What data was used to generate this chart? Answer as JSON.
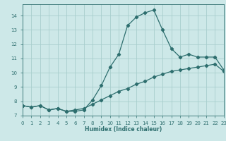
{
  "xlabel": "Humidex (Indice chaleur)",
  "bg_color": "#cde8e8",
  "grid_color": "#a8cecd",
  "line_color": "#2d6e6e",
  "curve1_x": [
    0,
    1,
    2,
    3,
    4,
    5,
    6,
    7,
    8,
    9,
    10,
    11,
    12,
    13,
    14,
    15,
    16,
    17,
    18,
    19,
    20,
    21,
    22,
    23
  ],
  "curve1_y": [
    7.7,
    7.6,
    7.7,
    7.4,
    7.5,
    7.3,
    7.3,
    7.4,
    8.1,
    9.1,
    10.4,
    11.3,
    13.3,
    13.9,
    14.2,
    14.4,
    13.0,
    11.7,
    11.1,
    11.3,
    11.1,
    11.1,
    11.1,
    10.2
  ],
  "curve2_x": [
    0,
    1,
    2,
    3,
    4,
    5,
    6,
    7,
    8,
    9,
    10,
    11,
    12,
    13,
    14,
    15,
    16,
    17,
    18,
    19,
    20,
    21,
    22,
    23
  ],
  "curve2_y": [
    7.7,
    7.6,
    7.7,
    7.4,
    7.5,
    7.3,
    7.4,
    7.5,
    7.8,
    8.1,
    8.4,
    8.7,
    8.9,
    9.2,
    9.4,
    9.7,
    9.9,
    10.1,
    10.2,
    10.3,
    10.4,
    10.5,
    10.6,
    10.1
  ],
  "xlim": [
    0,
    23
  ],
  "ylim": [
    7.0,
    14.8
  ],
  "yticks": [
    7,
    8,
    9,
    10,
    11,
    12,
    13,
    14
  ],
  "xticks": [
    0,
    1,
    2,
    3,
    4,
    5,
    6,
    7,
    8,
    9,
    10,
    11,
    12,
    13,
    14,
    15,
    16,
    17,
    18,
    19,
    20,
    21,
    22,
    23
  ],
  "marker": "D",
  "markersize": 2.2,
  "linewidth": 0.9,
  "tick_fontsize": 5.0,
  "xlabel_fontsize": 5.5
}
